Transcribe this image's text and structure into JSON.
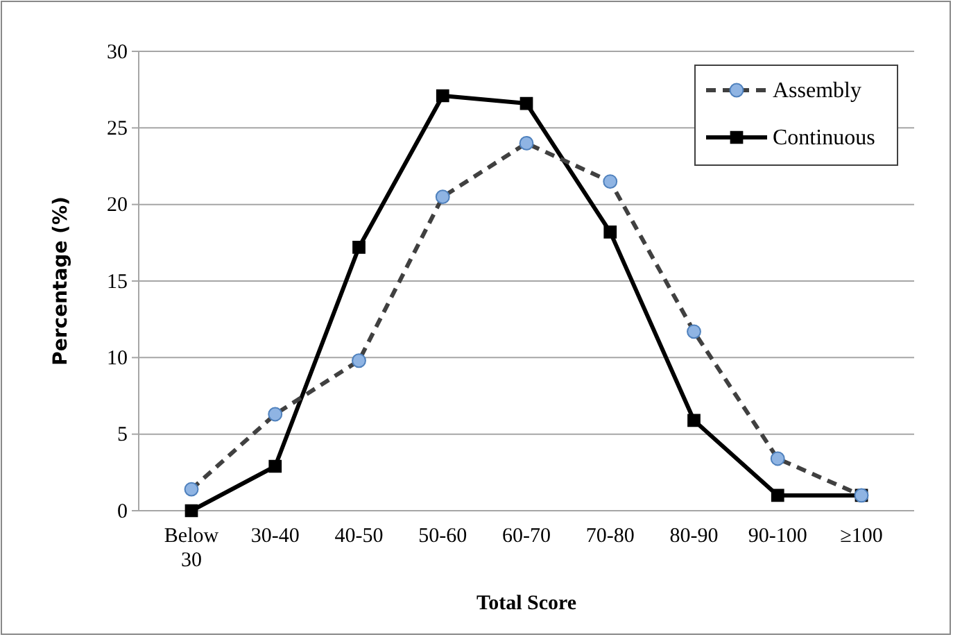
{
  "chart_data": {
    "type": "line",
    "xlabel": "Total Score",
    "ylabel": "Percentage (%)",
    "categories": [
      "Below 30",
      "30-40",
      "40-50",
      "50-60",
      "60-70",
      "70-80",
      "80-90",
      "90-100",
      "≥100"
    ],
    "series": [
      {
        "name": "Assembly",
        "color": "#404040",
        "line_style": "dashed",
        "marker": "circle",
        "values": [
          1.4,
          6.3,
          9.8,
          20.5,
          24.0,
          21.5,
          11.7,
          3.4,
          1.0
        ]
      },
      {
        "name": "Continuous",
        "color": "#000000",
        "line_style": "solid",
        "marker": "square",
        "values": [
          0,
          2.9,
          17.2,
          27.1,
          26.6,
          18.2,
          5.9,
          1.0,
          1.0
        ]
      }
    ],
    "ylim": [
      0,
      30
    ],
    "yticks": [
      0,
      5,
      10,
      15,
      20,
      25,
      30
    ],
    "grid": "y",
    "legend": "top right"
  }
}
